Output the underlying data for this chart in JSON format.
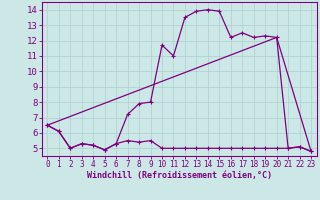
{
  "xlabel": "Windchill (Refroidissement éolien,°C)",
  "bg_color": "#cce8e6",
  "line_color": "#800080",
  "grid_color": "#aacfcd",
  "xlim": [
    -0.5,
    23.5
  ],
  "ylim": [
    4.5,
    14.5
  ],
  "yticks": [
    5,
    6,
    7,
    8,
    9,
    10,
    11,
    12,
    13,
    14
  ],
  "xticks": [
    0,
    1,
    2,
    3,
    4,
    5,
    6,
    7,
    8,
    9,
    10,
    11,
    12,
    13,
    14,
    15,
    16,
    17,
    18,
    19,
    20,
    21,
    22,
    23
  ],
  "series1_x": [
    0,
    1,
    2,
    3,
    4,
    5,
    6,
    7,
    8,
    9,
    10,
    11,
    12,
    13,
    14,
    15,
    16,
    17,
    18,
    19,
    20,
    21,
    22,
    23
  ],
  "series1_y": [
    6.5,
    6.1,
    5.0,
    5.3,
    5.2,
    4.9,
    5.3,
    5.5,
    5.4,
    5.5,
    5.0,
    5.0,
    5.0,
    5.0,
    5.0,
    5.0,
    5.0,
    5.0,
    5.0,
    5.0,
    5.0,
    5.0,
    5.1,
    4.8
  ],
  "series2_x": [
    0,
    1,
    2,
    3,
    4,
    5,
    6,
    7,
    8,
    9,
    10,
    11,
    12,
    13,
    14,
    15,
    16,
    17,
    18,
    19,
    20,
    21,
    22,
    23
  ],
  "series2_y": [
    6.5,
    6.1,
    5.0,
    5.3,
    5.2,
    4.9,
    5.3,
    7.2,
    7.9,
    8.0,
    11.7,
    11.0,
    13.5,
    13.9,
    14.0,
    13.9,
    12.2,
    12.5,
    12.2,
    12.3,
    12.2,
    5.0,
    5.1,
    4.8
  ],
  "series3_x": [
    0,
    20,
    23
  ],
  "series3_y": [
    6.5,
    12.2,
    4.8
  ],
  "marker_size": 3,
  "lw": 0.9
}
